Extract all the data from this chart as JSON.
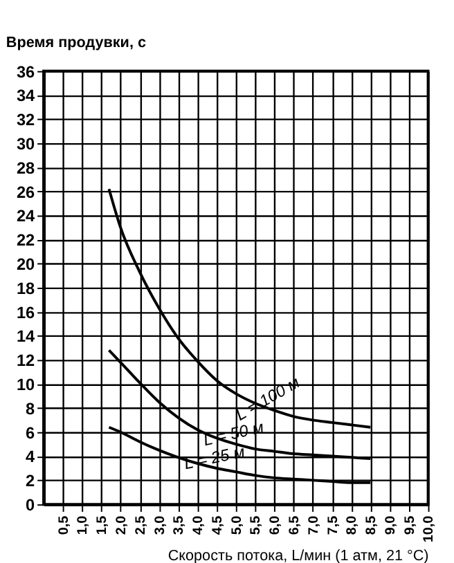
{
  "chart_data": {
    "type": "line",
    "ylabel": "Время продувки, с",
    "xlabel": "Скорость потока, L/мин (1 атм, 21 °C)",
    "xlim": [
      0,
      10
    ],
    "ylim": [
      0,
      36
    ],
    "xticks": [
      {
        "value": 0.5,
        "label": "0,5"
      },
      {
        "value": 1,
        "label": "1,0"
      },
      {
        "value": 1.5,
        "label": "1,5"
      },
      {
        "value": 2,
        "label": "2,0"
      },
      {
        "value": 2.5,
        "label": "2,5"
      },
      {
        "value": 3,
        "label": "3,0"
      },
      {
        "value": 3.5,
        "label": "3,5"
      },
      {
        "value": 4,
        "label": "4,0"
      },
      {
        "value": 4.5,
        "label": "4,5"
      },
      {
        "value": 5,
        "label": "5,0"
      },
      {
        "value": 5.5,
        "label": "5,5"
      },
      {
        "value": 6,
        "label": "6,0"
      },
      {
        "value": 6.5,
        "label": "6,5"
      },
      {
        "value": 7,
        "label": "7,0"
      },
      {
        "value": 7.5,
        "label": "7,5"
      },
      {
        "value": 8,
        "label": "8,0"
      },
      {
        "value": 8.5,
        "label": "8,5"
      },
      {
        "value": 9,
        "label": "9,0"
      },
      {
        "value": 9.5,
        "label": "9,5"
      },
      {
        "value": 10,
        "label": "10,0"
      }
    ],
    "yticks": [
      0,
      2,
      4,
      6,
      8,
      10,
      12,
      14,
      16,
      18,
      20,
      22,
      24,
      26,
      28,
      30,
      32,
      34,
      36
    ],
    "grid": true,
    "legend": false,
    "marker": "none",
    "line_style": "solid",
    "x": [
      1.7,
      2,
      2.5,
      3,
      3.5,
      4,
      4.5,
      5,
      5.5,
      6,
      6.5,
      7,
      7.5,
      8,
      8.5
    ],
    "series": [
      {
        "name": "L = 100 м",
        "color": "#000000",
        "values": [
          26.2,
          23,
          19.3,
          16.3,
          13.8,
          11.9,
          10.3,
          9.2,
          8.4,
          7.8,
          7.3,
          7,
          6.8,
          6.6,
          6.4
        ]
      },
      {
        "name": "L = 50 м",
        "color": "#000000",
        "values": [
          12.8,
          11.8,
          10.1,
          8.5,
          7.2,
          6.2,
          5.5,
          5,
          4.6,
          4.4,
          4.2,
          4.1,
          4,
          3.9,
          3.8
        ]
      },
      {
        "name": "L = 25 м",
        "color": "#000000",
        "values": [
          6.4,
          6,
          5.2,
          4.5,
          3.9,
          3.4,
          3,
          2.7,
          2.4,
          2.2,
          2.1,
          2,
          1.9,
          1.8,
          1.8
        ]
      }
    ]
  }
}
